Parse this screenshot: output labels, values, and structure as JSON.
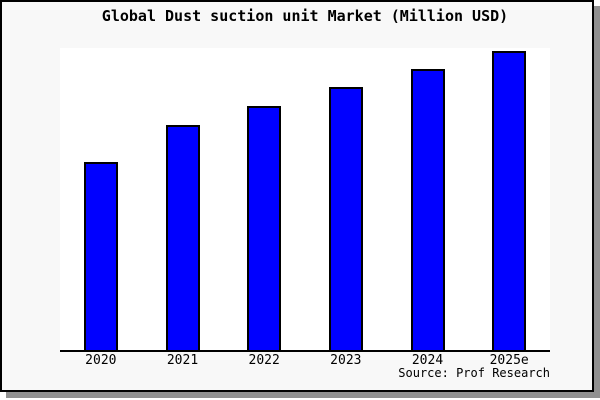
{
  "figure": {
    "source_label": "Source: Prof Research",
    "colors": {
      "figure_background": "#f8f8f8",
      "plot_background": "#ffffff",
      "bar_fill": "#0000ff",
      "bar_border": "#000000",
      "axis_line": "#000000",
      "figure_border": "#000000",
      "shadow": "#909090",
      "text": "#000000"
    }
  },
  "chart_data": {
    "type": "bar",
    "title": "Global Dust suction unit Market (Million USD)",
    "categories": [
      "2020",
      "2021",
      "2022",
      "2023",
      "2024",
      "2025e"
    ],
    "values": [
      62.3,
      74.5,
      80.8,
      87.1,
      93.0,
      99.0
    ],
    "value_note": "no y-axis ticks or labels visible; values estimated as percent of plot height (max bar nearly touches plot top)",
    "xlabel": "",
    "ylabel": "",
    "ylim": [
      0,
      100
    ],
    "grid": false,
    "legend": false,
    "annotations": [
      "Source: Prof Research"
    ]
  }
}
